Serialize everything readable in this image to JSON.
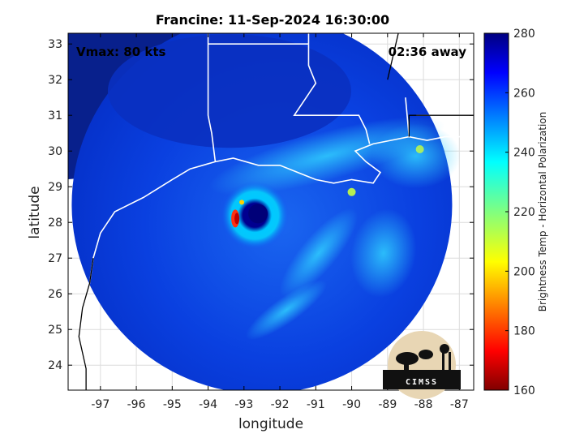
{
  "chart_data": {
    "type": "heatmap",
    "title": "Francine: 11-Sep-2024 16:30:00",
    "xlabel": "longitude",
    "ylabel": "latitude",
    "xlim": [
      -97.9,
      -86.6
    ],
    "ylim": [
      23.3,
      33.3
    ],
    "xticks": [
      -97,
      -96,
      -95,
      -94,
      -93,
      -92,
      -91,
      -90,
      -89,
      -88,
      -87
    ],
    "yticks": [
      24,
      25,
      26,
      27,
      28,
      29,
      30,
      31,
      32,
      33
    ],
    "grid": true,
    "colorbar": {
      "label": "Brightness Temp - Horizontal Polarization",
      "range": [
        160,
        280
      ],
      "ticks": [
        160,
        180,
        200,
        220,
        240,
        260,
        280
      ],
      "colormap": "jet"
    },
    "annotations": {
      "left": "Vmax: 80 kts",
      "right": "02:36 away"
    },
    "storm_center": {
      "lon": -92.7,
      "lat": 28.2
    },
    "swath_center": {
      "lon": -92.5,
      "lat": 28.5
    },
    "swath_radius_deg": 5.3
  },
  "logo": {
    "text": "CIMSS"
  },
  "colors": {
    "background": "#ffffff",
    "outside_swath": "#08208c",
    "coastline": "#ffffff",
    "map_outline": "#000000"
  }
}
